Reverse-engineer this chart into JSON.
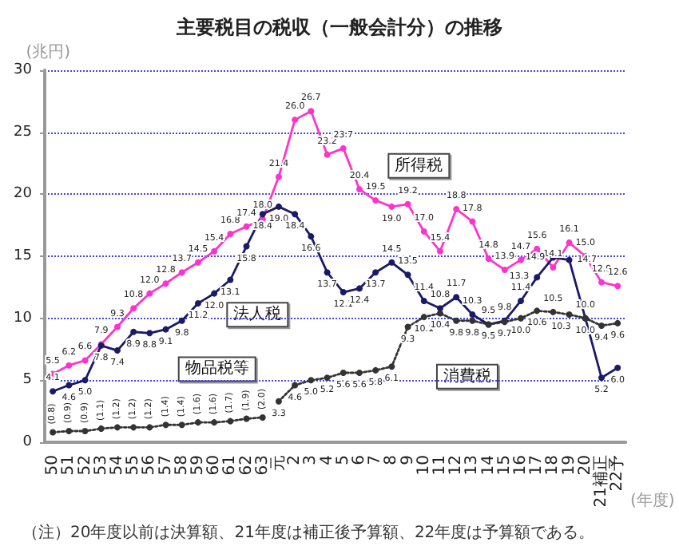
{
  "chart_data": {
    "type": "line",
    "title": "主要税目の税収（一般会計分）の推移",
    "ylabel": "(兆円)",
    "xlabel": "(年度)",
    "annotations": [
      "（注）20年度以前は決算額、21年度は補正後予算額、22年度は予算額である。"
    ],
    "categories": [
      "50",
      "51",
      "52",
      "53",
      "54",
      "55",
      "56",
      "57",
      "58",
      "59",
      "60",
      "61",
      "62",
      "63",
      "元",
      "2",
      "3",
      "4",
      "5",
      "6",
      "7",
      "8",
      "9",
      "10",
      "11",
      "12",
      "13",
      "14",
      "15",
      "16",
      "17",
      "18",
      "19",
      "20",
      "21補正",
      "22予"
    ],
    "series": [
      {
        "name": "所得税",
        "color": "#ff33cc",
        "line_style": "solid",
        "values": [
          5.5,
          6.2,
          6.6,
          7.9,
          9.3,
          10.8,
          12.0,
          12.8,
          13.7,
          14.5,
          15.4,
          16.8,
          17.4,
          18.0,
          21.4,
          26.0,
          26.7,
          23.2,
          23.7,
          20.4,
          19.5,
          19.0,
          19.2,
          17.0,
          15.4,
          18.8,
          17.8,
          14.8,
          13.9,
          14.7,
          15.6,
          14.1,
          16.1,
          15.0,
          12.9,
          12.6
        ],
        "value_labels": [
          "5.5",
          "6.2",
          "6.6",
          "7.9",
          "9.3",
          "10.8",
          "12.0",
          "12.8",
          "13.7",
          "14.5",
          "15.4",
          "16.8",
          "17.4",
          "18.0",
          "21.4",
          "26.0",
          "26.7",
          "23.2",
          "23.7",
          "20.4",
          "19.5",
          "19.0",
          "19.2",
          "17.0",
          "15.4",
          "18.8",
          "17.8",
          "14.8",
          "13.9",
          "14.7",
          "15.6",
          "14.1",
          "16.1",
          "15.0",
          "12.9",
          "12.6"
        ]
      },
      {
        "name": "法人税",
        "color": "#1a1a66",
        "line_style": "solid",
        "values": [
          4.1,
          4.6,
          5.0,
          7.8,
          7.4,
          8.9,
          8.8,
          9.1,
          9.8,
          11.2,
          12.0,
          13.1,
          15.8,
          18.4,
          19.0,
          18.4,
          16.6,
          13.7,
          12.1,
          12.4,
          13.7,
          14.5,
          13.5,
          11.4,
          10.8,
          11.7,
          10.3,
          9.5,
          9.8,
          11.4,
          13.3,
          14.9,
          14.7,
          10.0,
          5.2,
          6.0
        ],
        "value_labels": [
          "4.1",
          "4.6",
          "5.0",
          "7.8",
          "7.4",
          "8.9",
          "8.8",
          "9.1",
          "9.8",
          "11.2",
          "12.0",
          "13.1",
          "15.8",
          "18.4",
          "19.0",
          "18.4",
          "16.6",
          "13.7",
          "12.1",
          "12.4",
          "13.7",
          "14.5",
          "13.5",
          "11.4",
          "10.8",
          "11.7",
          "10.3",
          "9.5",
          "9.8",
          "11.4",
          "13.3",
          "14.9",
          "14.7",
          "10.0",
          "5.2",
          "6.0"
        ]
      },
      {
        "name": "物品税等",
        "color": "#333333",
        "line_style": "dotted",
        "values": [
          0.8,
          0.9,
          0.9,
          1.1,
          1.2,
          1.2,
          1.2,
          1.4,
          1.4,
          1.6,
          1.6,
          1.7,
          1.9,
          2.0,
          null,
          null,
          null,
          null,
          null,
          null,
          null,
          null,
          null,
          null,
          null,
          null,
          null,
          null,
          null,
          null,
          null,
          null,
          null,
          null,
          null,
          null
        ],
        "value_labels": [
          "(0.8)",
          "(0.9)",
          "(0.9)",
          "(1.1)",
          "(1.2)",
          "(1.2)",
          "(1.2)",
          "(1.4)",
          "(1.4)",
          "(1.6)",
          "(1.6)",
          "(1.7)",
          "(1.9)",
          "(2.0)",
          null,
          null,
          null,
          null,
          null,
          null,
          null,
          null,
          null,
          null,
          null,
          null,
          null,
          null,
          null,
          null,
          null,
          null,
          null,
          null,
          null,
          null
        ]
      },
      {
        "name": "消費税",
        "color": "#333333",
        "line_style": "dotted",
        "values": [
          null,
          null,
          null,
          null,
          null,
          null,
          null,
          null,
          null,
          null,
          null,
          null,
          null,
          null,
          3.3,
          4.6,
          5.0,
          5.2,
          5.6,
          5.6,
          5.8,
          6.1,
          9.3,
          10.1,
          10.4,
          9.8,
          9.8,
          9.5,
          9.7,
          10.0,
          10.6,
          10.5,
          10.3,
          10.0,
          9.4,
          9.6
        ],
        "value_labels": [
          null,
          null,
          null,
          null,
          null,
          null,
          null,
          null,
          null,
          null,
          null,
          null,
          null,
          null,
          "3.3",
          "4.6",
          "5.0",
          "5.2",
          "5.6",
          "5.6",
          "5.8",
          "6.1",
          "9.3",
          "10.1",
          "10.4",
          "9.8",
          "9.8",
          "9.5",
          "9.7",
          "10.0",
          "10.6",
          "10.5",
          "10.3",
          "10.0",
          "9.4",
          "9.6"
        ]
      }
    ],
    "ylim": [
      0,
      30
    ],
    "yticks": [
      0,
      5,
      10,
      15,
      20,
      25,
      30
    ],
    "grid": "y",
    "marker": "circle",
    "legend": false
  }
}
